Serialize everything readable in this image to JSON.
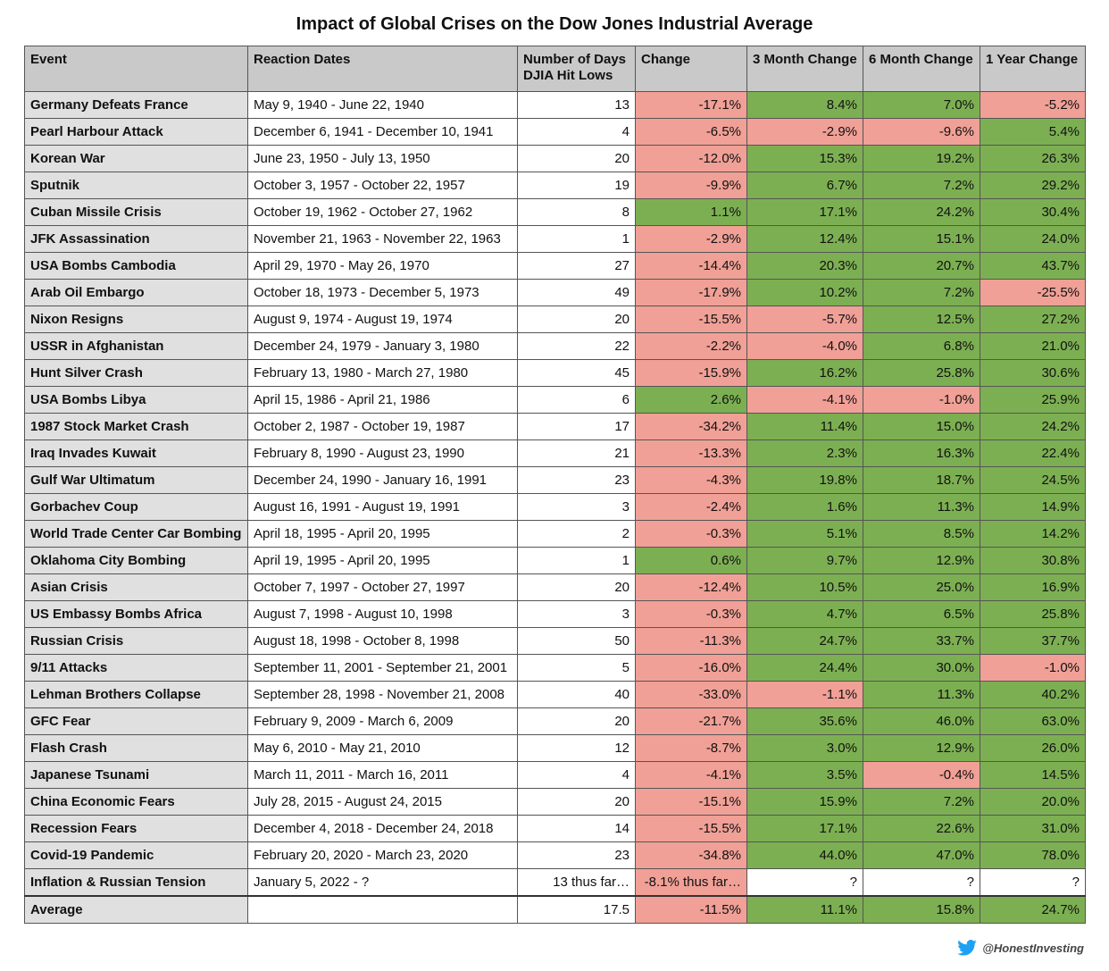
{
  "title": "Impact of Global Crises on the Dow Jones Industrial Average",
  "table": {
    "columns": [
      "Event",
      "Reaction Dates",
      "Number of Days\nDJIA Hit Lows",
      "Change",
      "3 Month Change",
      "6 Month Change",
      "1 Year Change"
    ],
    "rows": [
      [
        "Germany Defeats France",
        "May 9, 1940 - June 22, 1940",
        "13",
        "-17.1%",
        "8.4%",
        "7.0%",
        "-5.2%"
      ],
      [
        "Pearl Harbour Attack",
        "December 6, 1941 - December 10, 1941",
        "4",
        "-6.5%",
        "-2.9%",
        "-9.6%",
        "5.4%"
      ],
      [
        "Korean War",
        "June 23, 1950 - July 13, 1950",
        "20",
        "-12.0%",
        "15.3%",
        "19.2%",
        "26.3%"
      ],
      [
        "Sputnik",
        "October 3, 1957 - October 22, 1957",
        "19",
        "-9.9%",
        "6.7%",
        "7.2%",
        "29.2%"
      ],
      [
        "Cuban Missile Crisis",
        "October 19, 1962 - October 27, 1962",
        "8",
        "1.1%",
        "17.1%",
        "24.2%",
        "30.4%"
      ],
      [
        "JFK Assassination",
        "November 21, 1963 - November 22, 1963",
        "1",
        "-2.9%",
        "12.4%",
        "15.1%",
        "24.0%"
      ],
      [
        "USA Bombs Cambodia",
        "April 29, 1970 - May 26, 1970",
        "27",
        "-14.4%",
        "20.3%",
        "20.7%",
        "43.7%"
      ],
      [
        "Arab Oil Embargo",
        "October 18, 1973 - December 5, 1973",
        "49",
        "-17.9%",
        "10.2%",
        "7.2%",
        "-25.5%"
      ],
      [
        "Nixon Resigns",
        "August 9, 1974 - August 19, 1974",
        "20",
        "-15.5%",
        "-5.7%",
        "12.5%",
        "27.2%"
      ],
      [
        "USSR in Afghanistan",
        "December 24, 1979 - January 3, 1980",
        "22",
        "-2.2%",
        "-4.0%",
        "6.8%",
        "21.0%"
      ],
      [
        "Hunt Silver Crash",
        "February 13, 1980 - March 27, 1980",
        "45",
        "-15.9%",
        "16.2%",
        "25.8%",
        "30.6%"
      ],
      [
        "USA Bombs Libya",
        "April 15, 1986 - April 21, 1986",
        "6",
        "2.6%",
        "-4.1%",
        "-1.0%",
        "25.9%"
      ],
      [
        "1987 Stock Market Crash",
        "October 2, 1987 - October 19, 1987",
        "17",
        "-34.2%",
        "11.4%",
        "15.0%",
        "24.2%"
      ],
      [
        "Iraq Invades Kuwait",
        "February 8, 1990 - August 23, 1990",
        "21",
        "-13.3%",
        "2.3%",
        "16.3%",
        "22.4%"
      ],
      [
        "Gulf War Ultimatum",
        "December 24, 1990 - January 16, 1991",
        "23",
        "-4.3%",
        "19.8%",
        "18.7%",
        "24.5%"
      ],
      [
        "Gorbachev Coup",
        "August 16, 1991 - August 19, 1991",
        "3",
        "-2.4%",
        "1.6%",
        "11.3%",
        "14.9%"
      ],
      [
        "World Trade Center Car Bombing",
        "April 18, 1995 - April 20, 1995",
        "2",
        "-0.3%",
        "5.1%",
        "8.5%",
        "14.2%"
      ],
      [
        "Oklahoma City Bombing",
        "April 19, 1995 - April 20, 1995",
        "1",
        "0.6%",
        "9.7%",
        "12.9%",
        "30.8%"
      ],
      [
        "Asian Crisis",
        "October 7, 1997 - October 27, 1997",
        "20",
        "-12.4%",
        "10.5%",
        "25.0%",
        "16.9%"
      ],
      [
        "US Embassy Bombs Africa",
        "August 7, 1998 - August 10, 1998",
        "3",
        "-0.3%",
        "4.7%",
        "6.5%",
        "25.8%"
      ],
      [
        "Russian Crisis",
        "August 18, 1998 - October 8, 1998",
        "50",
        "-11.3%",
        "24.7%",
        "33.7%",
        "37.7%"
      ],
      [
        "9/11 Attacks",
        "September 11, 2001 - September 21, 2001",
        "5",
        "-16.0%",
        "24.4%",
        "30.0%",
        "-1.0%"
      ],
      [
        "Lehman Brothers Collapse",
        "September 28, 1998 - November 21, 2008",
        "40",
        "-33.0%",
        "-1.1%",
        "11.3%",
        "40.2%"
      ],
      [
        "GFC Fear",
        "February 9, 2009 - March 6, 2009",
        "20",
        "-21.7%",
        "35.6%",
        "46.0%",
        "63.0%"
      ],
      [
        "Flash Crash",
        "May 6, 2010 - May 21, 2010",
        "12",
        "-8.7%",
        "3.0%",
        "12.9%",
        "26.0%"
      ],
      [
        "Japanese Tsunami",
        "March 11, 2011 - March 16, 2011",
        "4",
        "-4.1%",
        "3.5%",
        "-0.4%",
        "14.5%"
      ],
      [
        "China Economic Fears",
        "July 28, 2015 - August 24, 2015",
        "20",
        "-15.1%",
        "15.9%",
        "7.2%",
        "20.0%"
      ],
      [
        "Recession Fears",
        "December 4, 2018 - December 24, 2018",
        "14",
        "-15.5%",
        "17.1%",
        "22.6%",
        "31.0%"
      ],
      [
        "Covid-19 Pandemic",
        "February 20, 2020 - March 23, 2020",
        "23",
        "-34.8%",
        "44.0%",
        "47.0%",
        "78.0%"
      ],
      [
        "Inflation & Russian Tension",
        "January 5, 2022 - ?",
        "13 thus far…",
        "-8.1% thus far…",
        "?",
        "?",
        "?"
      ]
    ],
    "average": {
      "label": "Average",
      "values": [
        "17.5",
        "-11.5%",
        "11.1%",
        "15.8%",
        "24.7%"
      ]
    }
  },
  "footer": {
    "handle": "@HonestInvesting"
  }
}
